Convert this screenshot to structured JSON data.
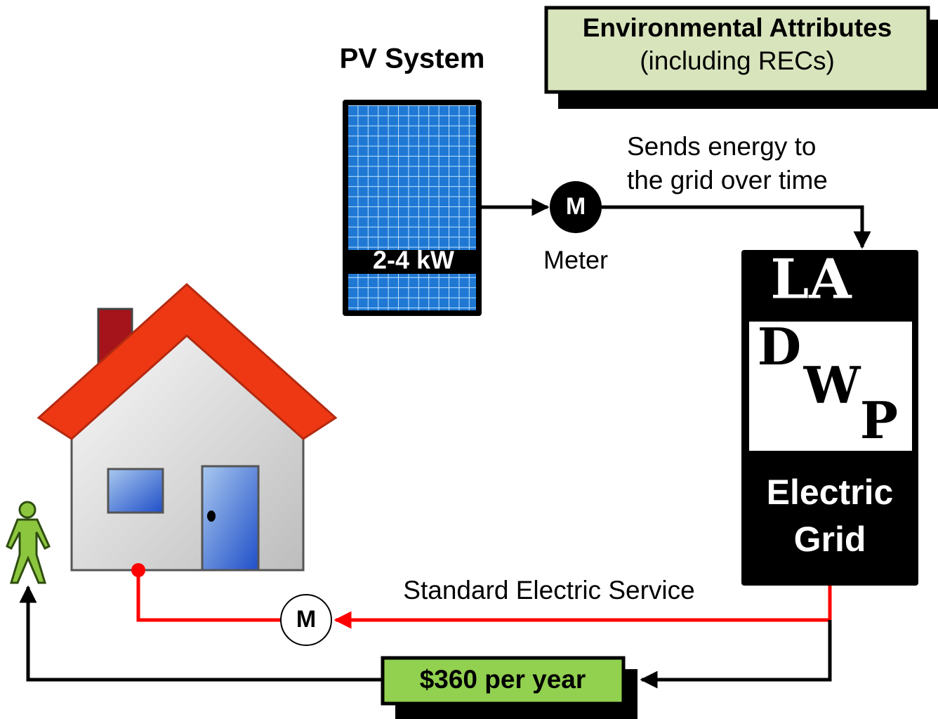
{
  "pv_system": {
    "title": "PV System",
    "panel_label": "2-4 kW"
  },
  "environmental_attributes": {
    "title": "Environmental Attributes",
    "subtitle": "(including RECs)"
  },
  "production_meter": {
    "symbol": "M",
    "label": "Meter"
  },
  "sends_energy": {
    "line1": "Sends energy to",
    "line2": "the grid over time"
  },
  "utility": {
    "logo_top": "LA",
    "logo_d": "D",
    "logo_w": "W",
    "logo_p": "P",
    "line1": "Electric",
    "line2": "Grid"
  },
  "service": {
    "label": "Standard Electric Service",
    "meter_symbol": "M"
  },
  "payment": {
    "label": "$360 per year"
  }
}
